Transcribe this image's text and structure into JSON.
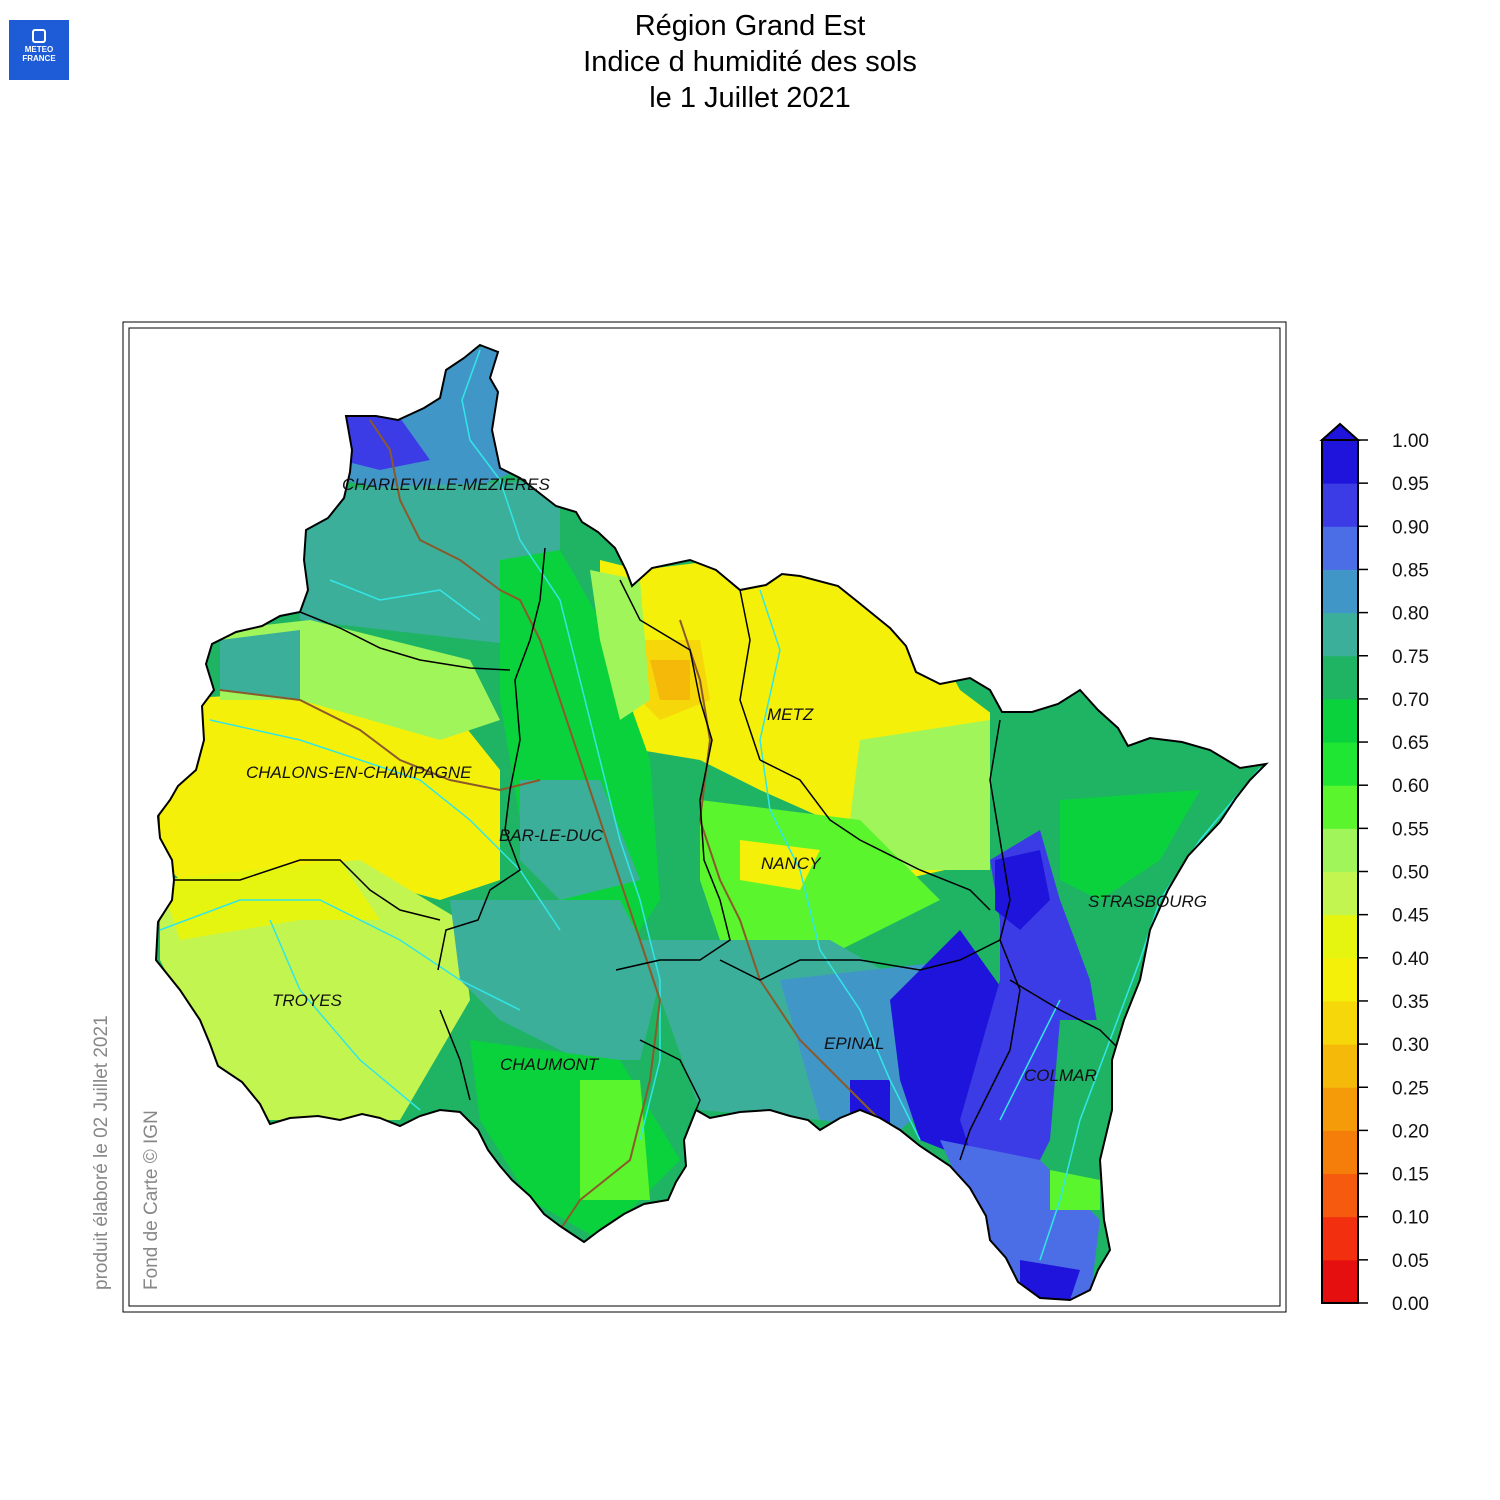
{
  "logo": {
    "line1": "METEO",
    "line2": "FRANCE"
  },
  "title": {
    "line1": "Région Grand Est",
    "line2": "Indice d humidité des sols",
    "line3": "le 1 Juillet 2021"
  },
  "credits": {
    "produced": "produit élaboré le 02 Juillet 2021",
    "basemap": "Fond de Carte © IGN"
  },
  "cities": [
    {
      "name": "CHARLEVILLE-MEZIERES"
    },
    {
      "name": "METZ"
    },
    {
      "name": "CHALONS-EN-CHAMPAGNE"
    },
    {
      "name": "BAR-LE-DUC"
    },
    {
      "name": "NANCY"
    },
    {
      "name": "STRASBOURG"
    },
    {
      "name": "TROYES"
    },
    {
      "name": "EPINAL"
    },
    {
      "name": "CHAUMONT"
    },
    {
      "name": "COLMAR"
    }
  ],
  "legend": {
    "min": 0.0,
    "max": 1.0,
    "step": 0.05,
    "ticks": [
      "1.00",
      "0.95",
      "0.90",
      "0.85",
      "0.80",
      "0.75",
      "0.70",
      "0.65",
      "0.60",
      "0.55",
      "0.50",
      "0.45",
      "0.40",
      "0.35",
      "0.30",
      "0.25",
      "0.20",
      "0.15",
      "0.10",
      "0.05",
      "0.00"
    ],
    "colors": [
      "#e60f0f",
      "#f2300f",
      "#f55a0f",
      "#f57d0a",
      "#f59b0a",
      "#f5b90a",
      "#f5d70a",
      "#f5f00a",
      "#e6f50f",
      "#c3f550",
      "#a0f55a",
      "#5af52d",
      "#1ee632",
      "#0ad23c",
      "#1eb464",
      "#3caf9b",
      "#4196c8",
      "#4b6ee6",
      "#3c3ce6",
      "#1e14dc"
    ]
  },
  "map_colors": {
    "very_wet": "#1e14dc",
    "wet": "#4b6ee6",
    "moist": "#3caf9b",
    "medium": "#0ad23c",
    "dry_moderate": "#a0f55a",
    "dry": "#f5f00a",
    "very_dry": "#f5b90a",
    "rivers": "#32e6e6",
    "dept_borders": "#000000",
    "basin_lines": "#8b5a2b"
  }
}
